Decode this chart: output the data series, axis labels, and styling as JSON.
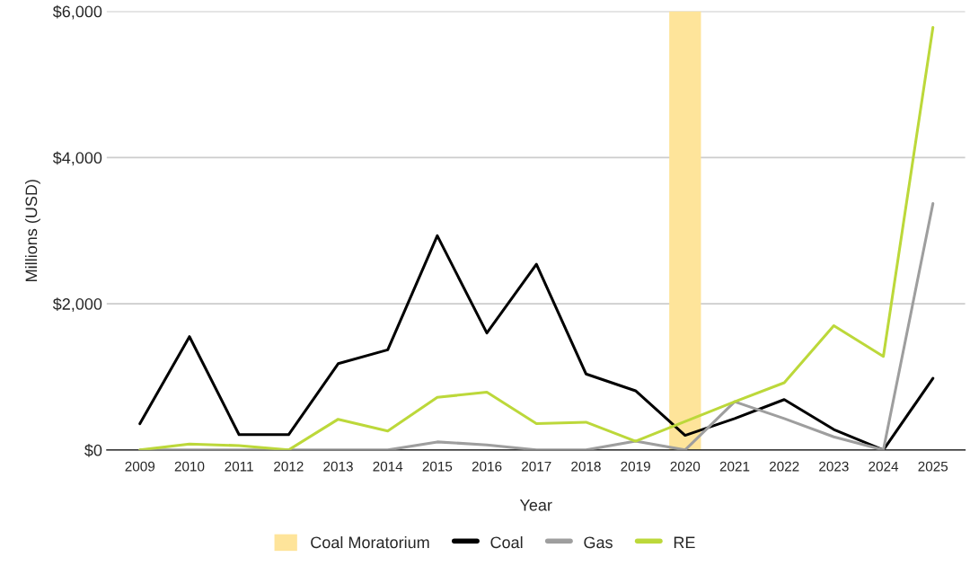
{
  "chart_data": {
    "type": "line",
    "xlabel": "Year",
    "ylabel": "Millions (USD)",
    "x": [
      2009,
      2010,
      2011,
      2012,
      2013,
      2014,
      2015,
      2016,
      2017,
      2018,
      2019,
      2020,
      2021,
      2022,
      2023,
      2024,
      2025
    ],
    "xlim": [
      2008.33,
      2025.65
    ],
    "xticks": [
      2009,
      2010,
      2011,
      2012,
      2013,
      2014,
      2015,
      2016,
      2017,
      2018,
      2019,
      2020,
      2021,
      2022,
      2023,
      2024,
      2025
    ],
    "ylim": [
      0,
      6000
    ],
    "yticks": [
      {
        "value": 0,
        "label": "$0"
      },
      {
        "value": 2000,
        "label": "$2,000"
      },
      {
        "value": 4000,
        "label": "$4,000"
      },
      {
        "value": 6000,
        "label": "$6,000"
      }
    ],
    "bands": [
      {
        "axis": "x",
        "from": 2019.68,
        "to": 2020.32,
        "label": "Coal Moratorium",
        "color": "#fee49a"
      }
    ],
    "series": [
      {
        "name": "Coal",
        "color": "#000000",
        "values": [
          360,
          1550,
          210,
          210,
          1180,
          1370,
          2930,
          1600,
          2540,
          1040,
          810,
          200,
          430,
          690,
          280,
          0,
          980
        ]
      },
      {
        "name": "Gas",
        "color": "#9e9e9e",
        "values": [
          0,
          0,
          0,
          0,
          0,
          0,
          110,
          70,
          0,
          0,
          120,
          0,
          660,
          430,
          180,
          0,
          3370
        ]
      },
      {
        "name": "RE",
        "color": "#bcd83a",
        "values": [
          0,
          80,
          60,
          0,
          420,
          260,
          720,
          790,
          360,
          380,
          120,
          390,
          660,
          920,
          1700,
          1280,
          5780
        ]
      }
    ],
    "grid": "y",
    "legend": "bottom",
    "line_style": "solid",
    "marker": "none"
  }
}
